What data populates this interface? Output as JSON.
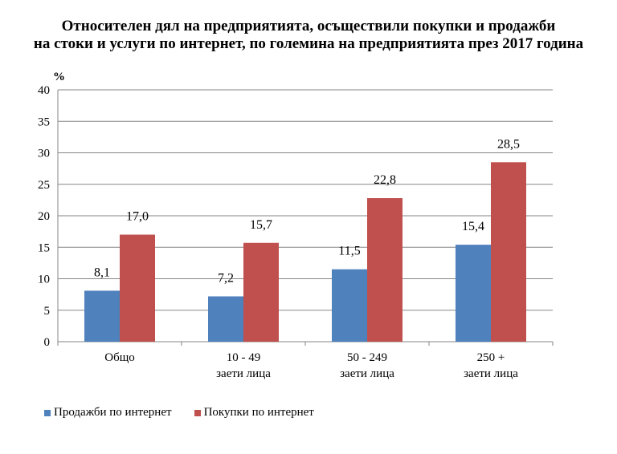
{
  "chart_data": {
    "type": "bar",
    "title_line1": "Относителен дял на предприятията, осъществили покупки и продажби",
    "title_line2": "на стоки и услуги по интернет, по големина на предприятията през 2017 година",
    "ylabel": "%",
    "ylim": [
      0,
      40
    ],
    "yticks": [
      0,
      5,
      10,
      15,
      20,
      25,
      30,
      35,
      40
    ],
    "grid": true,
    "legend_position": "bottom-left",
    "categories": [
      [
        "Общо"
      ],
      [
        "10 - 49",
        "заети лица"
      ],
      [
        "50 - 249",
        "заети лица"
      ],
      [
        "250 +",
        "заети лица"
      ]
    ],
    "series": [
      {
        "name": "Продажби по интернет",
        "color": "#4f81bd",
        "values": [
          8.1,
          7.2,
          11.5,
          15.4
        ],
        "labels": [
          "8,1",
          "7,2",
          "11,5",
          "15,4"
        ]
      },
      {
        "name": "Покупки по интернет",
        "color": "#c0504d",
        "values": [
          17.0,
          15.7,
          22.8,
          28.5
        ],
        "labels": [
          "17,0",
          "15,7",
          "22,8",
          "28,5"
        ]
      }
    ]
  }
}
